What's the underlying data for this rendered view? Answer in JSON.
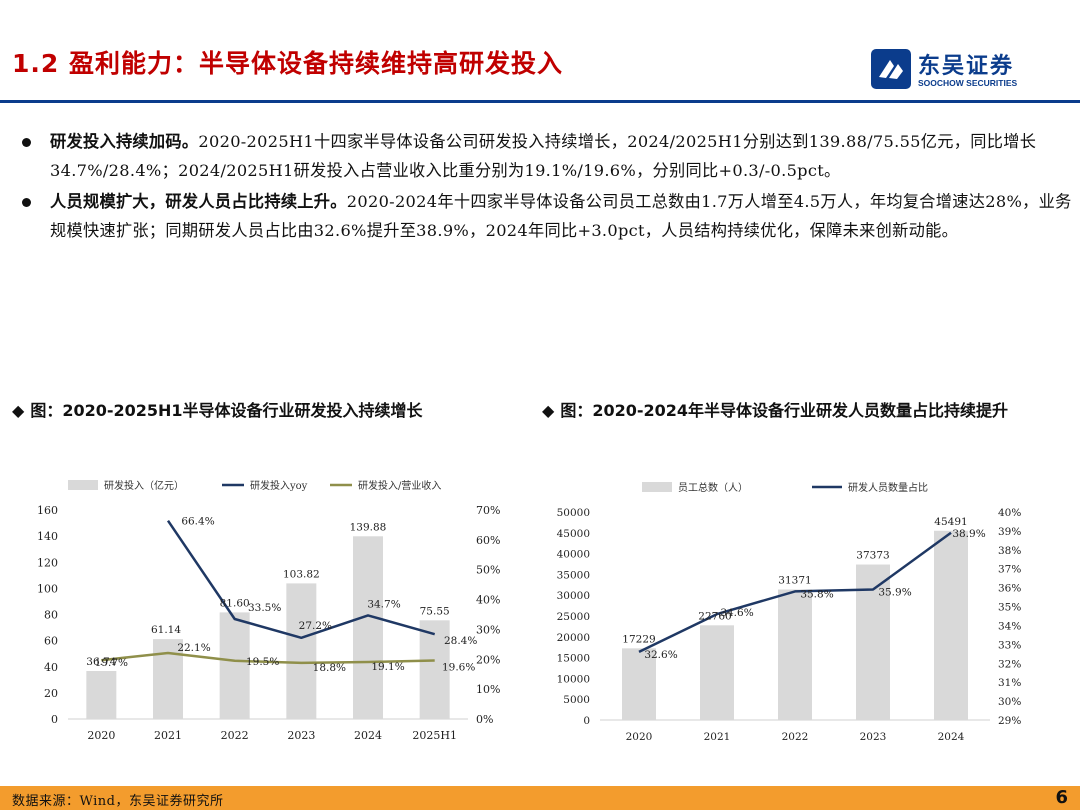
{
  "header": {
    "title": "1.2 盈利能力：半导体设备持续维持高研发投入",
    "logo_cn": "东吴证券",
    "logo_en": "SOOCHOW SECURITIES",
    "brand_color": "#0b3c8c",
    "title_color": "#c00000"
  },
  "bullets": [
    {
      "bold": "研发投入持续加码。",
      "text": "2020-2025H1十四家半导体设备公司研发投入持续增长，2024/2025H1分别达到139.88/75.55亿元，同比增长34.7%/28.4%；2024/2025H1研发投入占营业收入比重分别为19.1%/19.6%，分别同比+0.3/-0.5pct。"
    },
    {
      "bold": "人员规模扩大，研发人员占比持续上升。",
      "text": "2020-2024年十四家半导体设备公司员工总数由1.7万人增至4.5万人，年均复合增速达28%，业务规模快速扩张；同期研发人员占比由32.6%提升至38.9%，2024年同比+3.0pct，人员结构持续优化，保障未来创新动能。"
    }
  ],
  "captions": {
    "left": "图：2020-2025H1半导体设备行业研发投入持续增长",
    "right": "图：2020-2024年半导体设备行业研发人员数量占比持续提升",
    "marker": "◆"
  },
  "chart_data": [
    {
      "type": "bar",
      "categories": [
        "2020",
        "2021",
        "2022",
        "2023",
        "2024",
        "2025H1"
      ],
      "series": [
        {
          "name": "研发投入（亿元）",
          "kind": "bar",
          "axis": "left",
          "color": "#d9d9d9",
          "values": [
            36.74,
            61.14,
            81.6,
            103.82,
            139.88,
            75.55
          ],
          "labels": [
            "36.74",
            "61.14",
            "81.60",
            "103.82",
            "139.88",
            "75.55"
          ]
        },
        {
          "name": "研发投入yoy",
          "kind": "line",
          "axis": "right",
          "color": "#1f3864",
          "values": [
            null,
            66.4,
            33.5,
            27.2,
            34.7,
            28.4
          ],
          "labels": [
            "",
            "66.4%",
            "33.5%",
            "27.2%",
            "34.7%",
            "28.4%"
          ]
        },
        {
          "name": "研发投入/营业收入",
          "kind": "line",
          "axis": "right",
          "color": "#8f8f4a",
          "values": [
            19.7,
            22.1,
            19.5,
            18.8,
            19.1,
            19.6
          ],
          "labels": [
            "19.7%",
            "22.1%",
            "19.5%",
            "18.8%",
            "19.1%",
            "19.6%"
          ]
        }
      ],
      "y_left": {
        "min": 0,
        "max": 160,
        "ticks": [
          "0",
          "20",
          "40",
          "60",
          "80",
          "100",
          "120",
          "140",
          "160"
        ]
      },
      "y_right": {
        "min": 0,
        "max": 70,
        "ticks": [
          "0%",
          "10%",
          "20%",
          "30%",
          "40%",
          "50%",
          "60%",
          "70%"
        ]
      },
      "legend": "top"
    },
    {
      "type": "bar",
      "categories": [
        "2020",
        "2021",
        "2022",
        "2023",
        "2024"
      ],
      "series": [
        {
          "name": "员工总数（人）",
          "kind": "bar",
          "axis": "left",
          "color": "#d9d9d9",
          "values": [
            17229,
            22760,
            31371,
            37373,
            45491
          ],
          "labels": [
            "17229",
            "22760",
            "31371",
            "37373",
            "45491"
          ]
        },
        {
          "name": "研发人员数量占比",
          "kind": "line",
          "axis": "right",
          "color": "#1f3864",
          "values": [
            32.6,
            34.6,
            35.8,
            35.9,
            38.9
          ],
          "labels": [
            "32.6%",
            "34.6%",
            "35.8%",
            "35.9%",
            "38.9%"
          ]
        }
      ],
      "y_left": {
        "min": 0,
        "max": 50000,
        "ticks": [
          "0",
          "5000",
          "10000",
          "15000",
          "20000",
          "25000",
          "30000",
          "35000",
          "40000",
          "45000",
          "50000"
        ]
      },
      "y_right": {
        "min": 29,
        "max": 40,
        "ticks": [
          "29%",
          "30%",
          "31%",
          "32%",
          "33%",
          "34%",
          "35%",
          "36%",
          "37%",
          "38%",
          "39%",
          "40%"
        ]
      },
      "legend": "top"
    }
  ],
  "footer": {
    "source": "数据来源：Wind，东吴证券研究所",
    "page": "6",
    "color": "#f39c2d"
  }
}
